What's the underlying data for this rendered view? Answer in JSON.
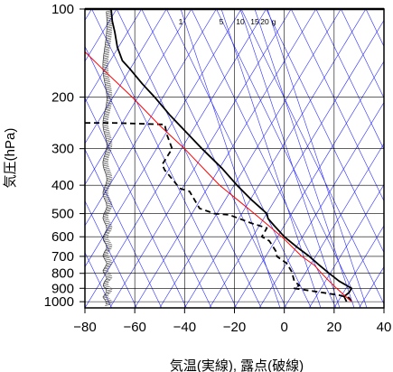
{
  "chart_data": {
    "type": "line",
    "xlabel": "気温(実線), 露点(破線)",
    "ylabel": "気圧(hPa)",
    "xlim": [
      -80,
      40
    ],
    "ylim": [
      1050,
      100
    ],
    "y_scale": "log",
    "x_ticks": [
      -80,
      -60,
      -40,
      -20,
      0,
      20,
      40
    ],
    "x_tick_labels": [
      "−80",
      "−60",
      "−40",
      "−20",
      "0",
      "20",
      "40"
    ],
    "y_ticks": [
      100,
      200,
      300,
      400,
      500,
      600,
      700,
      800,
      900,
      1000
    ],
    "y_tick_labels": [
      "100",
      "200",
      "300",
      "400",
      "500",
      "600",
      "700",
      "800",
      "900",
      "1000"
    ],
    "mixing_ratio_labels": [
      "1",
      "5",
      "10",
      "15",
      "20",
      "g"
    ],
    "grid": true,
    "colors": {
      "temperature": "#000000",
      "dewpoint": "#000000",
      "parcel": "#ff0000",
      "isotherm_dry_adiabat": "#2b2bff",
      "grid": "#000000"
    },
    "series": [
      {
        "key": "temperature",
        "style": "solid",
        "points": [
          [
            100,
            -69.5
          ],
          [
            110,
            -69
          ],
          [
            120,
            -68
          ],
          [
            135,
            -67
          ],
          [
            150,
            -65
          ],
          [
            160,
            -62
          ],
          [
            180,
            -57
          ],
          [
            200,
            -52
          ],
          [
            230,
            -46
          ],
          [
            260,
            -40
          ],
          [
            300,
            -33
          ],
          [
            350,
            -25
          ],
          [
            400,
            -19
          ],
          [
            450,
            -13
          ],
          [
            500,
            -7
          ],
          [
            520,
            -6.5
          ],
          [
            550,
            -4
          ],
          [
            600,
            0
          ],
          [
            650,
            5
          ],
          [
            700,
            10
          ],
          [
            750,
            14
          ],
          [
            800,
            18
          ],
          [
            850,
            22
          ],
          [
            880,
            25
          ],
          [
            900,
            27
          ],
          [
            930,
            26
          ],
          [
            960,
            24
          ],
          [
            1000,
            25
          ]
        ]
      },
      {
        "key": "dewpoint",
        "style": "dashed",
        "points": [
          [
            245,
            -80
          ],
          [
            245,
            -69
          ],
          [
            248,
            -48
          ],
          [
            270,
            -47
          ],
          [
            300,
            -45
          ],
          [
            340,
            -49
          ],
          [
            355,
            -48
          ],
          [
            390,
            -44
          ],
          [
            410,
            -42
          ],
          [
            420,
            -38
          ],
          [
            480,
            -34
          ],
          [
            500,
            -28
          ],
          [
            505,
            -22
          ],
          [
            540,
            -13
          ],
          [
            560,
            -7
          ],
          [
            600,
            -9
          ],
          [
            620,
            -6
          ],
          [
            680,
            -3
          ],
          [
            700,
            -3
          ],
          [
            740,
            1
          ],
          [
            790,
            3
          ],
          [
            850,
            4
          ],
          [
            880,
            6
          ],
          [
            900,
            4
          ],
          [
            930,
            15
          ],
          [
            950,
            22
          ],
          [
            970,
            26
          ],
          [
            1000,
            27
          ]
        ]
      },
      {
        "key": "parcel",
        "style": "solid",
        "points": [
          [
            140,
            -80
          ],
          [
            160,
            -73
          ],
          [
            200,
            -61
          ],
          [
            250,
            -50
          ],
          [
            300,
            -40
          ],
          [
            400,
            -26
          ],
          [
            500,
            -12
          ],
          [
            600,
            -1
          ],
          [
            700,
            7
          ],
          [
            750,
            12
          ],
          [
            800,
            15
          ],
          [
            850,
            18
          ],
          [
            900,
            21
          ],
          [
            950,
            24
          ],
          [
            1000,
            27
          ]
        ]
      }
    ],
    "wind_barbs_x": -72
  }
}
